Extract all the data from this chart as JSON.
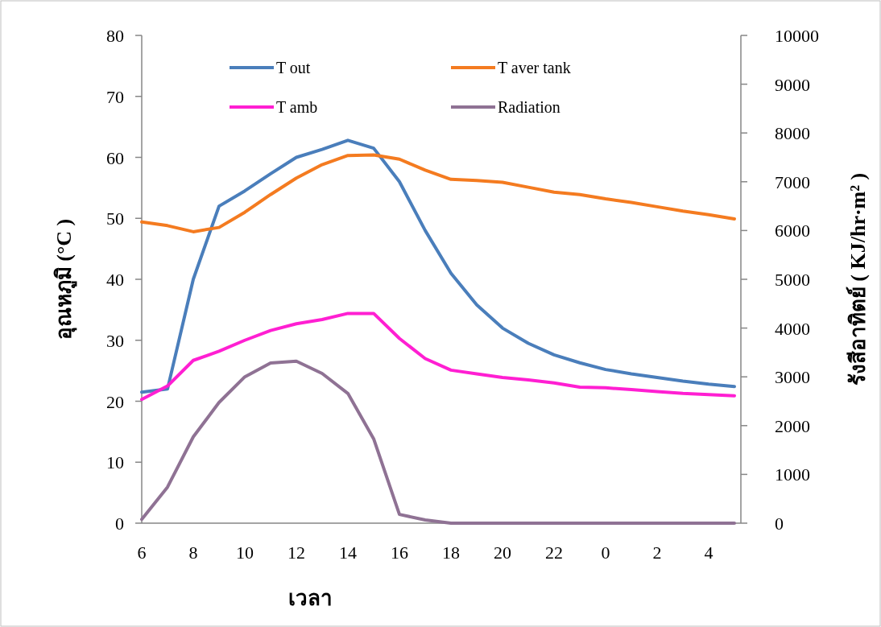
{
  "chart_data": {
    "type": "line",
    "xlabel": "เวลา",
    "ylabel": "อุณหภูมิ (°C )",
    "y2label": "รังสีอาทิตย์ ( KJ/hr·m² )",
    "categories": [
      "6",
      null,
      "8",
      null,
      "10",
      null,
      "12",
      null,
      "14",
      null,
      "16",
      null,
      "18",
      null,
      "20",
      null,
      "22",
      null,
      "0",
      null,
      "2",
      null,
      "4",
      null
    ],
    "series": [
      {
        "name": "T out",
        "color": "#4a7ebb",
        "values": [
          21.5,
          22,
          40,
          52,
          54.5,
          57.3,
          60,
          61.3,
          62.8,
          61.5,
          56,
          48,
          41,
          35.8,
          32,
          29.5,
          27.6,
          26.3,
          25.2,
          24.5,
          23.9,
          23.3,
          22.8,
          22.4
        ]
      },
      {
        "name": "T aver tank",
        "color": "#f47b20",
        "values": [
          49.4,
          48.8,
          47.8,
          48.5,
          51,
          53.9,
          56.6,
          58.8,
          60.3,
          60.4,
          59.7,
          57.9,
          56.4,
          56.2,
          55.9,
          55.1,
          54.3,
          53.9,
          53.2,
          52.6,
          51.9,
          51.2,
          50.6,
          49.9
        ]
      },
      {
        "name": "T amb",
        "color": "#ff1fd2",
        "values": [
          20.3,
          22.5,
          26.7,
          28.2,
          30,
          31.6,
          32.7,
          33.4,
          34.4,
          34.4,
          30.3,
          27,
          25.1,
          24.5,
          23.9,
          23.5,
          23,
          22.3,
          22.2,
          21.9,
          21.6,
          21.3,
          21.1,
          20.9
        ]
      },
      {
        "name": "Radiation",
        "color": "#8f7294",
        "axis": "y2",
        "values": [
          80,
          740,
          1770,
          2475,
          3000,
          3285,
          3320,
          3070,
          2660,
          1730,
          180,
          65,
          0,
          0,
          0,
          0,
          0,
          0,
          0,
          0,
          0,
          0,
          0,
          0
        ]
      }
    ],
    "ylim": [
      0,
      80
    ],
    "yticks": [
      0,
      10,
      20,
      30,
      40,
      50,
      60,
      70,
      80
    ],
    "y2lim": [
      0,
      10000
    ],
    "y2ticks": [
      0,
      1000,
      2000,
      3000,
      4000,
      5000,
      6000,
      7000,
      8000,
      9000,
      10000
    ],
    "legend": "top"
  }
}
